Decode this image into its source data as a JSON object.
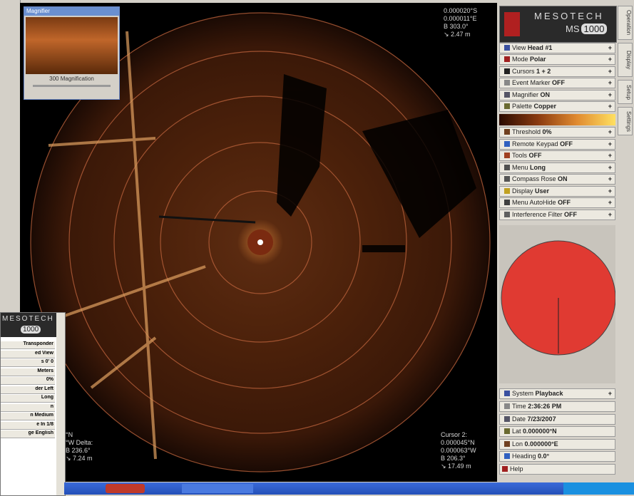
{
  "sonar": {
    "cursor1": [
      "0.000020°S",
      "0.000011°E",
      "B 303.0°",
      "↘ 2.47 m"
    ],
    "cursor2_title": "Cursor 2:",
    "cursor2": [
      "0.000045°N",
      "0.000063°W",
      "B 206.3°",
      "↘ 17.49 m"
    ],
    "delta": [
      "°N",
      "°W Delta:",
      "B 236.6°",
      "↘ 7.24 m"
    ]
  },
  "magnifier": {
    "title": "Magnifier",
    "label": "300 Magnification"
  },
  "panel": {
    "brand": "MESOTECH",
    "model_prefix": "MS",
    "model": "1000",
    "tabs": [
      "Operation",
      "Display",
      "Setup",
      "Settings"
    ],
    "menu": [
      {
        "label": "View",
        "value": "Head #1"
      },
      {
        "label": "Mode",
        "value": "Polar"
      },
      {
        "label": "Cursors",
        "value": "1 + 2"
      },
      {
        "label": "Event Marker",
        "value": "OFF"
      },
      {
        "label": "Magnifier",
        "value": "ON"
      },
      {
        "label": "Palette",
        "value": "Copper"
      },
      {
        "label": "Threshold",
        "value": "0%"
      },
      {
        "label": "Remote Keypad",
        "value": "OFF"
      },
      {
        "label": "Tools",
        "value": "OFF"
      },
      {
        "label": "Menu",
        "value": "Long"
      },
      {
        "label": "Compass Rose",
        "value": "ON"
      },
      {
        "label": "Display",
        "value": "User"
      },
      {
        "label": "Menu AutoHide",
        "value": "OFF"
      },
      {
        "label": "Interference Filter",
        "value": "OFF"
      }
    ],
    "system": {
      "label": "System",
      "value": "Playback"
    },
    "status": [
      {
        "label": "Time",
        "value": "2:36:26 PM"
      },
      {
        "label": "Date",
        "value": "7/23/2007"
      },
      {
        "label": "Lat",
        "value": "0.000000°N"
      },
      {
        "label": "Lon",
        "value": "0.000000°E"
      },
      {
        "label": "Heading",
        "value": "0.0°"
      }
    ],
    "help": "Help"
  },
  "second_window": {
    "brand": "MESOTECH",
    "model": "1000",
    "menu": [
      "Transponder",
      "ed View",
      "s 0' 0",
      "Meters",
      "0%",
      "der Left",
      "Long",
      "n",
      "n Medium",
      "e In 1/8",
      "ge English"
    ]
  }
}
